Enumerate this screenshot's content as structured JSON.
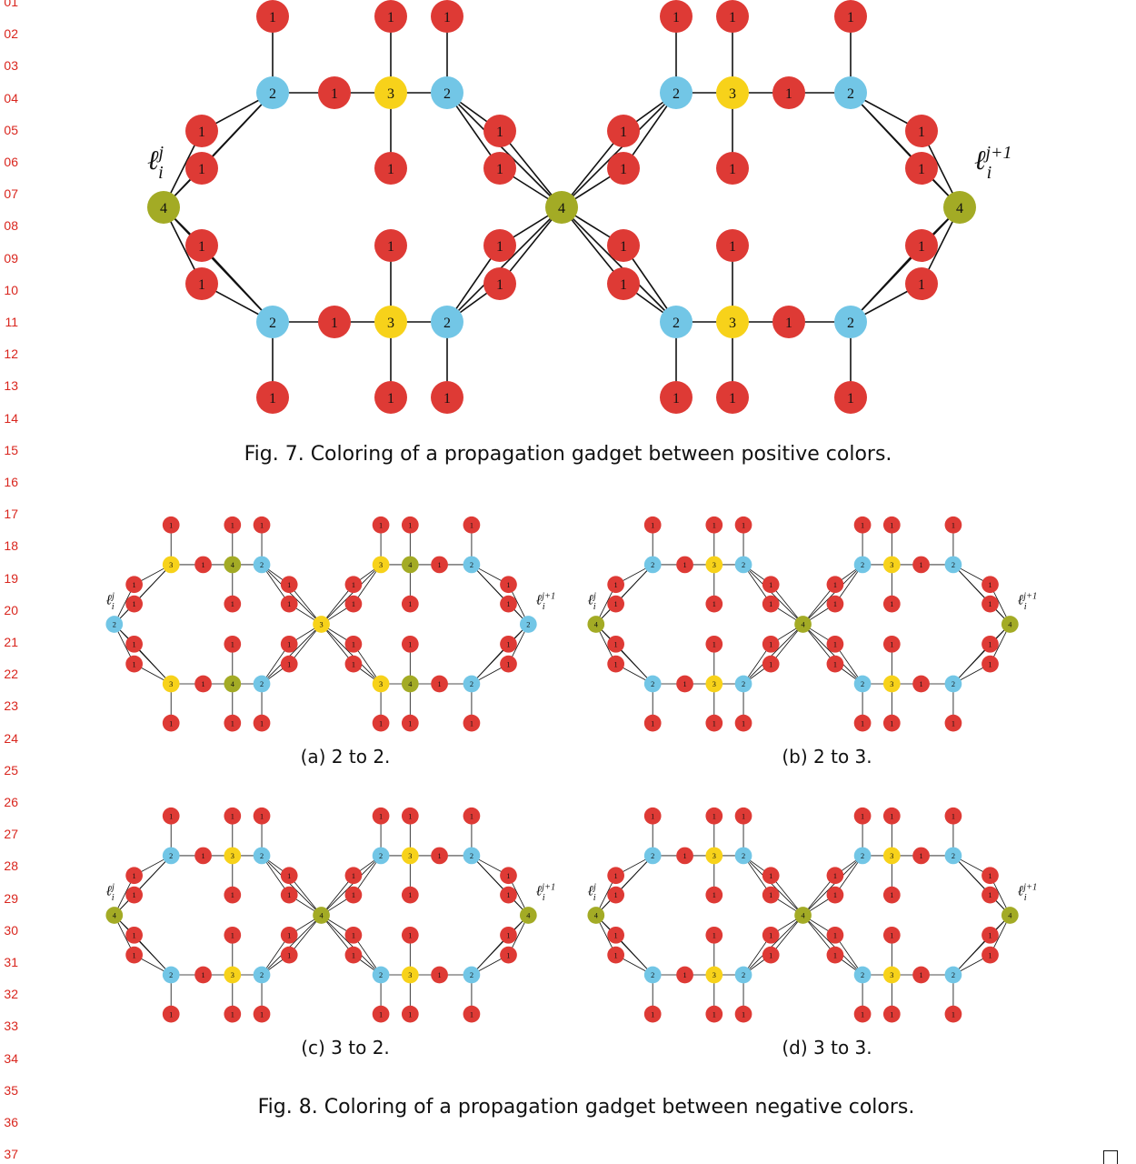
{
  "line_numbers": [
    "01",
    "02",
    "03",
    "04",
    "05",
    "06",
    "07",
    "08",
    "09",
    "10",
    "11",
    "12",
    "13",
    "14",
    "15",
    "16",
    "17",
    "18",
    "19",
    "20",
    "21",
    "22",
    "23",
    "24",
    "25",
    "26",
    "27",
    "28",
    "29",
    "30",
    "31",
    "32",
    "33",
    "34",
    "35",
    "36",
    "37"
  ],
  "colors": {
    "c1": "#de3a35",
    "c2": "#72c6e6",
    "c3": "#f7d21a",
    "c4": "#a3ab25"
  },
  "labels": {
    "left_main": "ℓ",
    "left_sup": "j",
    "left_sub": "i",
    "right_main": "ℓ",
    "right_sup": "j+1",
    "right_sub": "i"
  },
  "fig7": {
    "caption": "Fig. 7.  Coloring of a propagation gadget between positive colors.",
    "left_end": 4,
    "center": 4,
    "right_end": 4,
    "left_half_top": [
      2,
      3,
      2
    ],
    "left_half_bottom": [
      2,
      3,
      2
    ],
    "right_half_top": [
      2,
      3,
      2
    ],
    "right_half_bottom": [
      2,
      3,
      2
    ]
  },
  "fig8": {
    "caption": "Fig. 8.  Coloring of a propagation gadget between negative colors.",
    "subfigs": [
      {
        "caption": "(a) 2 to 2.",
        "left_end": 2,
        "center": 3,
        "right_end": 2,
        "left_half_top": [
          3,
          4,
          2
        ],
        "left_half_bottom": [
          3,
          4,
          2
        ],
        "right_half_top": [
          2,
          4,
          3
        ],
        "right_half_bottom": [
          2,
          4,
          3
        ]
      },
      {
        "caption": "(b) 2 to 3.",
        "left_end": 4,
        "center": 4,
        "right_end": 4,
        "left_half_top": [
          2,
          3,
          2
        ],
        "left_half_bottom": [
          2,
          3,
          2
        ],
        "right_half_top": [
          2,
          3,
          2
        ],
        "right_half_bottom": [
          2,
          3,
          2
        ]
      },
      {
        "caption": "(c) 3 to 2.",
        "left_end": 4,
        "center": 4,
        "right_end": 4,
        "left_half_top": [
          2,
          3,
          2
        ],
        "left_half_bottom": [
          2,
          3,
          2
        ],
        "right_half_top": [
          2,
          3,
          2
        ],
        "right_half_bottom": [
          2,
          3,
          2
        ]
      },
      {
        "caption": "(d) 3 to 3.",
        "left_end": 4,
        "center": 4,
        "right_end": 4,
        "left_half_top": [
          2,
          3,
          2
        ],
        "left_half_bottom": [
          2,
          3,
          2
        ],
        "right_half_top": [
          2,
          3,
          2
        ],
        "right_half_bottom": [
          2,
          3,
          2
        ]
      }
    ]
  }
}
